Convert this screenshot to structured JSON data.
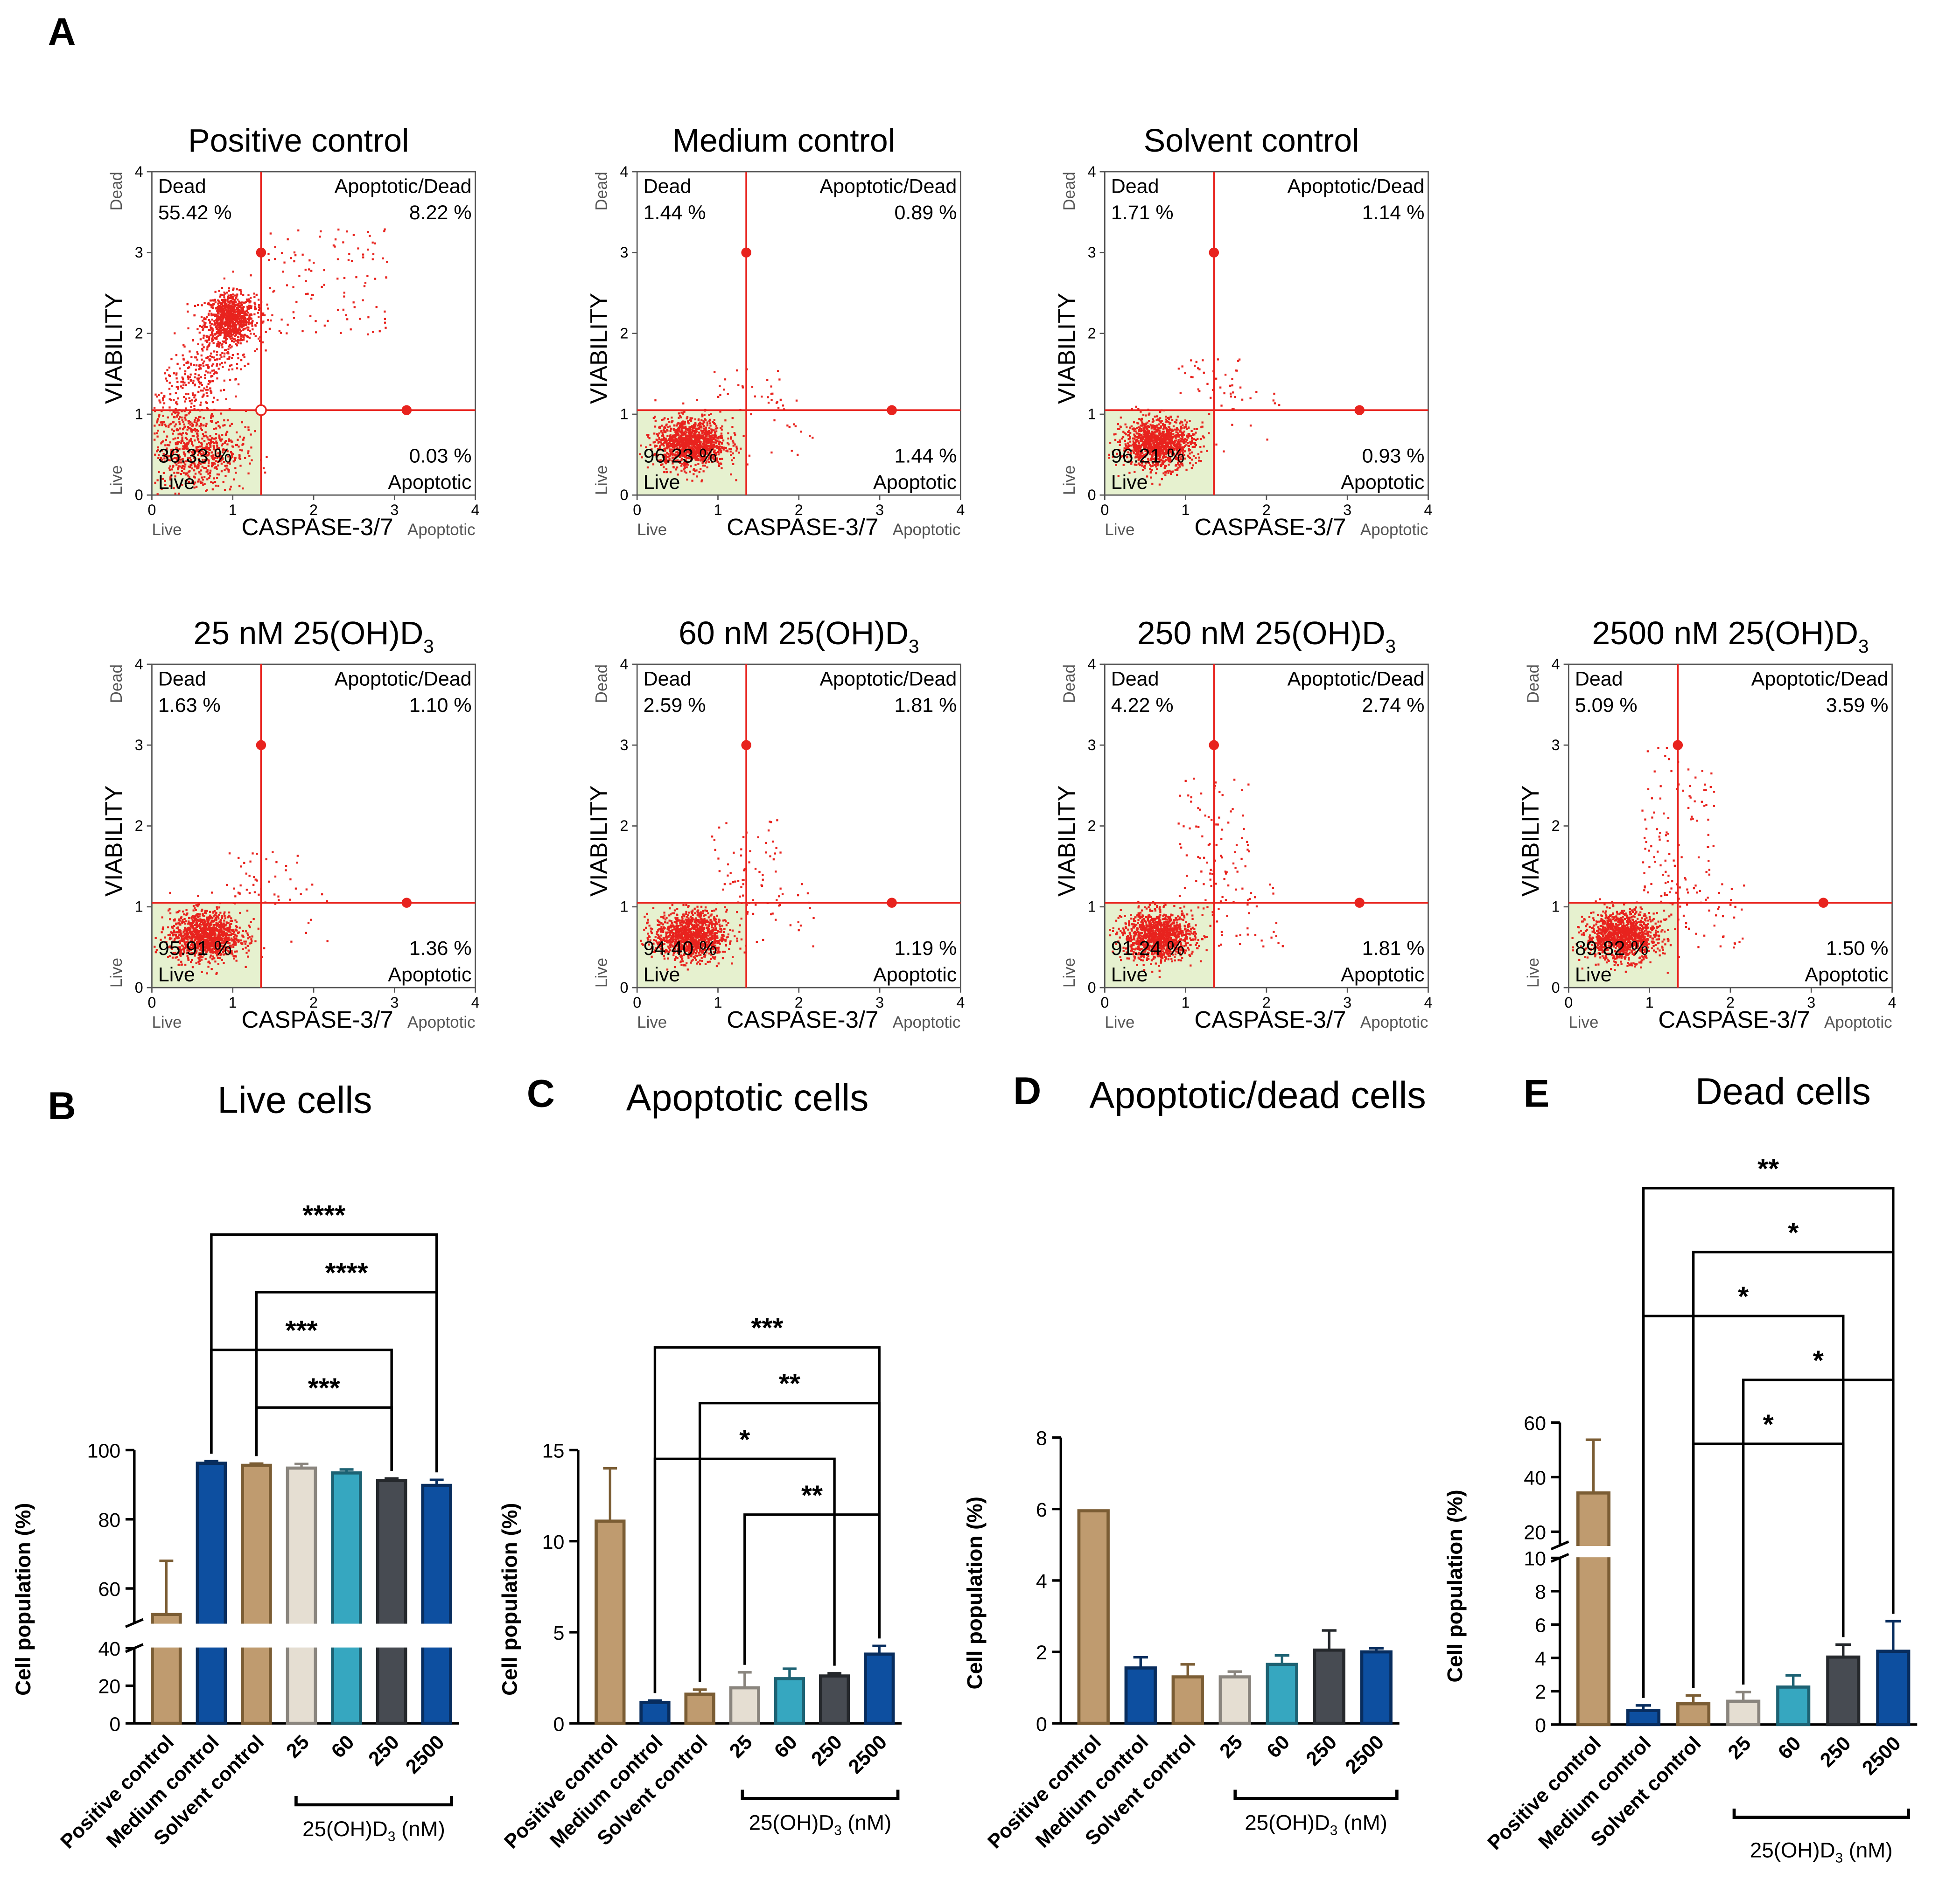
{
  "panel_letters": {
    "A": "A",
    "B": "B",
    "C": "C",
    "D": "D",
    "E": "E"
  },
  "colors": {
    "tan": "#bf9b6f",
    "tan_edge": "#7b5d34",
    "blue": "#0d4fa0",
    "blue_edge": "#082d5e",
    "cream": "#e5ded2",
    "cream_edge": "#8a857e",
    "teal": "#36a7c0",
    "teal_edge": "#1d6273",
    "charcoal": "#474b52",
    "charcoal_edge": "#25282c",
    "gate": "#e8231e",
    "dots": "#e8231e",
    "live_fill": "#e6f1cf"
  },
  "flow": {
    "axis_ticks": [
      "0",
      "1",
      "2",
      "3",
      "4"
    ],
    "x_title": "CASPASE-3/7",
    "x_left_label": "Live",
    "x_right_label": "Apoptotic",
    "y_title": "VIABILITY",
    "y_bottom_label": "Live",
    "y_top_label": "Dead",
    "quadrant_names": {
      "dead": "Dead",
      "apop_dead": "Apoptotic/Dead",
      "live": "Live",
      "apop": "Apoptotic"
    },
    "gate_x": 1.35,
    "gate_y": 1.05,
    "marker_y": 3.0,
    "marker_x": 3.15,
    "plots": [
      {
        "title": "Positive control",
        "title_sub": "",
        "dead": "55.42 %",
        "apop_dead": "8.22 %",
        "live": "36.33 %",
        "apop": "0.03 %",
        "pattern": "positive"
      },
      {
        "title": "Medium control",
        "title_sub": "",
        "dead": "1.44 %",
        "apop_dead": "0.89 %",
        "live": "96.23 %",
        "apop": "1.44 %",
        "pattern": "normal",
        "spread": 0.3
      },
      {
        "title": "Solvent control",
        "title_sub": "",
        "dead": "1.71 %",
        "apop_dead": "1.14 %",
        "live": "96.21 %",
        "apop": "0.93 %",
        "pattern": "normal",
        "spread": 0.35
      },
      {
        "title": "25 nM 25(OH)D",
        "title_sub": "3",
        "dead": "1.63 %",
        "apop_dead": "1.10 %",
        "live": "95.91 %",
        "apop": "1.36 %",
        "pattern": "normal",
        "spread": 0.35
      },
      {
        "title": "60 nM 25(OH)D",
        "title_sub": "3",
        "dead": "2.59 %",
        "apop_dead": "1.81 %",
        "live": "94.40 %",
        "apop": "1.19 %",
        "pattern": "normal",
        "spread": 0.55
      },
      {
        "title": "250 nM 25(OH)D",
        "title_sub": "3",
        "dead": "4.22 %",
        "apop_dead": "2.74 %",
        "live": "91.24 %",
        "apop": "1.81 %",
        "pattern": "normal",
        "spread": 0.8
      },
      {
        "title": "2500 nM 25(OH)D",
        "title_sub": "3",
        "dead": "5.09 %",
        "apop_dead": "3.59 %",
        "live": "89.82 %",
        "apop": "1.50 %",
        "pattern": "normal",
        "spread": 1.0
      }
    ]
  },
  "bar_common": {
    "categories": [
      "Positive control",
      "Medium control",
      "Solvent control",
      "25",
      "60",
      "250",
      "2500"
    ],
    "category_colors": [
      "tan",
      "blue",
      "tan",
      "cream",
      "teal",
      "charcoal",
      "blue"
    ],
    "group_label": "25(OH)D",
    "group_label_sub": "3",
    "group_label_unit": " (nM)",
    "ylabel": "Cell population (%)"
  },
  "chart_data": [
    {
      "type": "bar",
      "title": "Live cells",
      "categories": [
        "Positive control",
        "Medium control",
        "Solvent control",
        "25",
        "60",
        "250",
        "2500"
      ],
      "values": [
        52.5,
        96.2,
        95.6,
        94.8,
        93.4,
        91.2,
        89.8
      ],
      "errors": [
        15.5,
        0.6,
        0.5,
        1.2,
        1.0,
        0.6,
        1.6
      ],
      "ylabel": "Cell population (%)",
      "y_break": {
        "lower": [
          0,
          40
        ],
        "upper": [
          50,
          100
        ]
      },
      "yticks_lower": [
        "0",
        "20",
        "40"
      ],
      "yticks_upper": [
        "60",
        "80",
        "100"
      ],
      "significance": [
        {
          "from": 1,
          "to": 6,
          "label": "****"
        },
        {
          "from": 2,
          "to": 6,
          "label": "****"
        },
        {
          "from": 1,
          "to": 5,
          "label": "***"
        },
        {
          "from": 2,
          "to": 5,
          "label": "***"
        }
      ]
    },
    {
      "type": "bar",
      "title": "Apoptotic cells",
      "categories": [
        "Positive control",
        "Medium control",
        "Solvent control",
        "25",
        "60",
        "250",
        "2500"
      ],
      "values": [
        11.1,
        1.15,
        1.6,
        1.95,
        2.45,
        2.6,
        3.8
      ],
      "errors": [
        2.9,
        0.1,
        0.25,
        0.85,
        0.55,
        0.15,
        0.45
      ],
      "ylabel": "Cell population (%)",
      "ylim": [
        0,
        15
      ],
      "yticks": [
        "0",
        "5",
        "10",
        "15"
      ],
      "significance": [
        {
          "from": 1,
          "to": 6,
          "label": "***"
        },
        {
          "from": 2,
          "to": 6,
          "label": "**"
        },
        {
          "from": 1,
          "to": 5,
          "label": "*"
        },
        {
          "from": 3,
          "to": 6,
          "label": "**"
        }
      ]
    },
    {
      "type": "bar",
      "title": "Apoptotic/dead cells",
      "categories": [
        "Positive control",
        "Medium control",
        "Solvent control",
        "25",
        "60",
        "250",
        "2500"
      ],
      "values": [
        5.95,
        1.55,
        1.3,
        1.3,
        1.65,
        2.05,
        2.0
      ],
      "errors": [
        0,
        0.3,
        0.35,
        0.15,
        0.25,
        0.55,
        0.1
      ],
      "ylabel": "Cell population (%)",
      "ylim": [
        0,
        8
      ],
      "yticks": [
        "0",
        "2",
        "4",
        "6",
        "8"
      ],
      "significance": []
    },
    {
      "type": "bar",
      "title": "Dead cells",
      "categories": [
        "Positive control",
        "Medium control",
        "Solvent control",
        "25",
        "60",
        "250",
        "2500"
      ],
      "values": [
        34.2,
        0.85,
        1.25,
        1.4,
        2.25,
        4.05,
        4.4
      ],
      "errors": [
        19.5,
        0.3,
        0.5,
        0.55,
        0.7,
        0.75,
        1.8
      ],
      "ylabel": "Cell population (%)",
      "y_break": {
        "lower": [
          0,
          10
        ],
        "upper": [
          15,
          60
        ]
      },
      "yticks_lower": [
        "0",
        "2",
        "4",
        "6",
        "8",
        "10"
      ],
      "yticks_upper": [
        "20",
        "40",
        "60"
      ],
      "significance": [
        {
          "from": 1,
          "to": 6,
          "label": "**"
        },
        {
          "from": 2,
          "to": 6,
          "label": "*"
        },
        {
          "from": 1,
          "to": 5,
          "label": "*"
        },
        {
          "from": 3,
          "to": 6,
          "label": "*"
        },
        {
          "from": 2,
          "to": 5,
          "label": "*"
        }
      ]
    }
  ]
}
